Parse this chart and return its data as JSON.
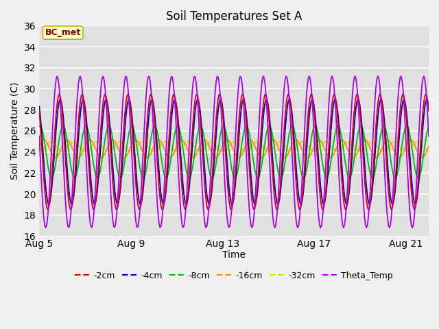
{
  "title": "Soil Temperatures Set A",
  "xlabel": "Time",
  "ylabel": "Soil Temperature (C)",
  "ylim": [
    16,
    36
  ],
  "yticks": [
    16,
    18,
    20,
    22,
    24,
    26,
    28,
    30,
    32,
    34,
    36
  ],
  "xtick_labels": [
    "Aug 5",
    "Aug 9",
    "Aug 13",
    "Aug 17",
    "Aug 21"
  ],
  "xtick_positions": [
    0,
    4,
    8,
    12,
    16
  ],
  "colors": {
    "-2cm": "#dd0000",
    "-4cm": "#0000cc",
    "-8cm": "#00bb00",
    "-16cm": "#ff8800",
    "-32cm": "#dddd00",
    "Theta_Temp": "#aa00ee"
  },
  "plot_bg": "#e0e0e0",
  "fig_bg": "#f0f0f0",
  "grid_color": "#ffffff",
  "annotation_text": "BC_met",
  "annotation_color": "#8b0000",
  "annotation_bg": "#ffffcc",
  "annotation_edge": "#aaaa00",
  "n_days": 17,
  "base_temp": 24.0,
  "legend_labels": [
    "-2cm",
    "-4cm",
    "-8cm",
    "-16cm",
    "-32cm",
    "Theta_Temp"
  ]
}
